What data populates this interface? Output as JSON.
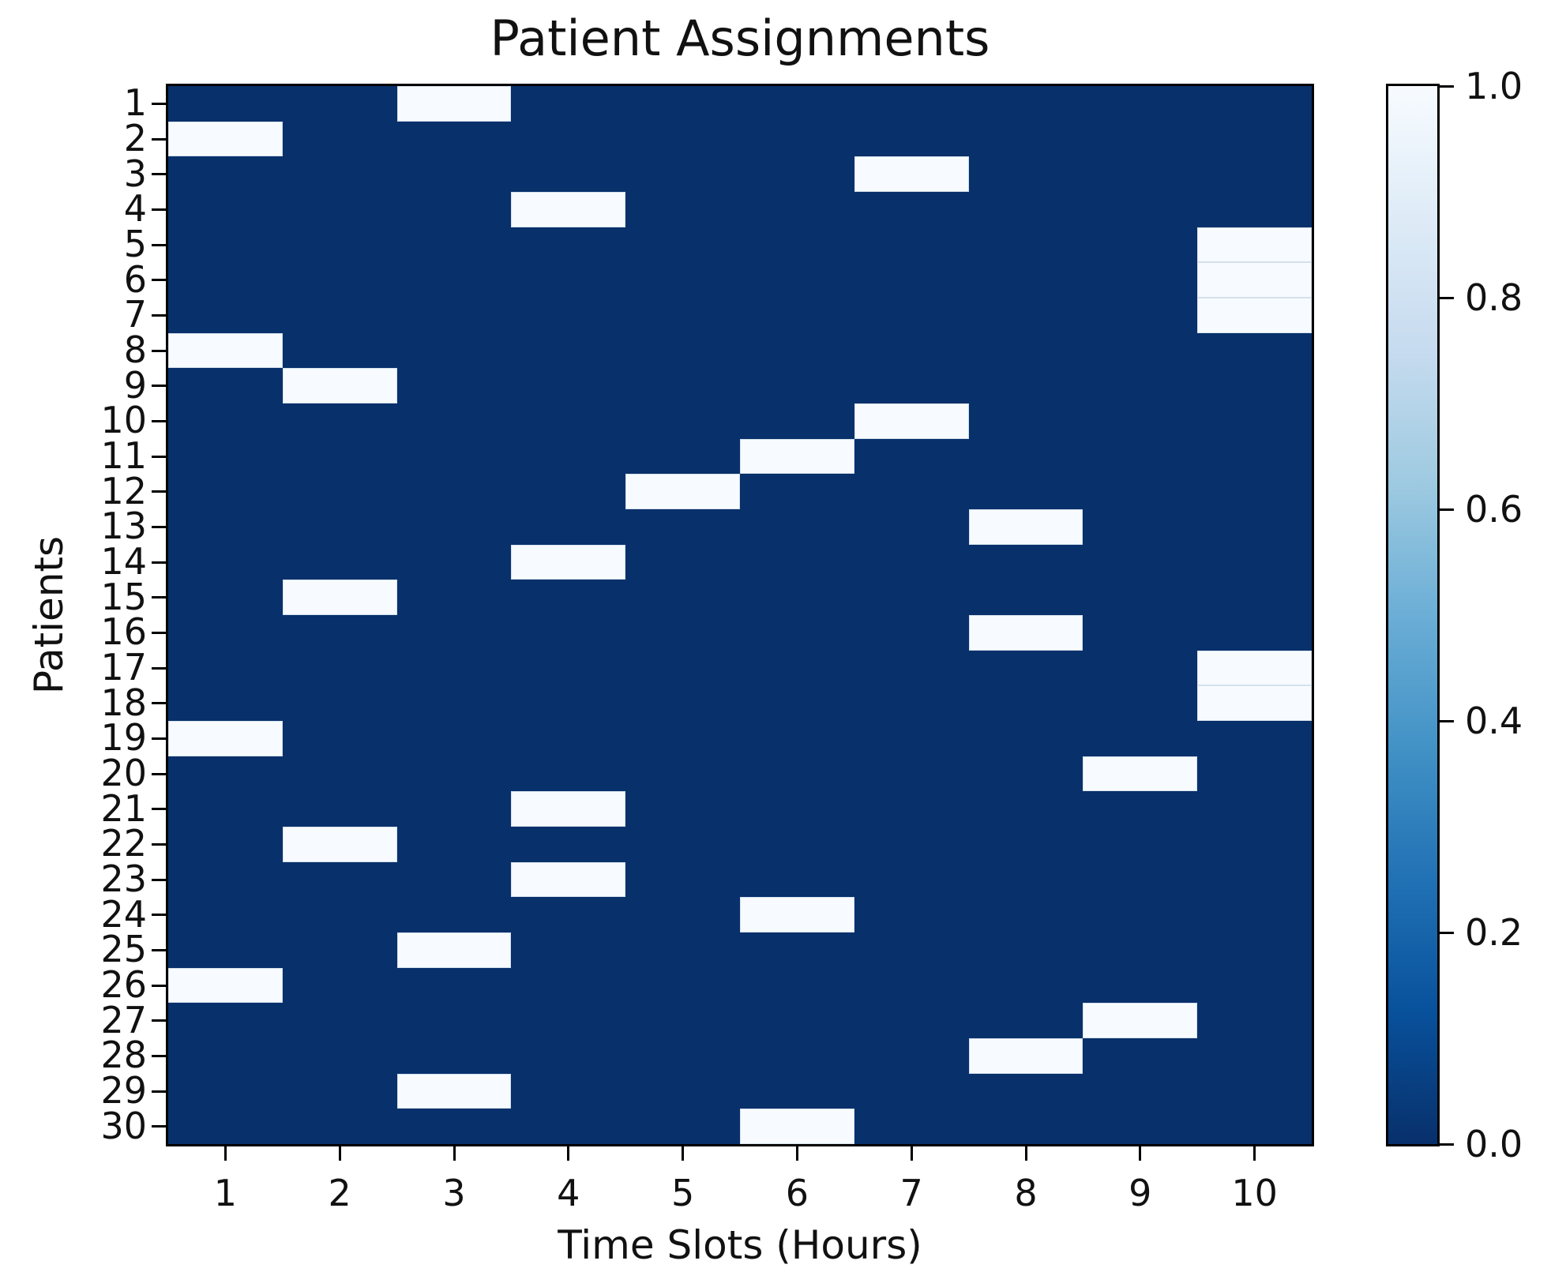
{
  "title": "Patient Assignments",
  "chart_data": {
    "type": "heatmap",
    "title": "Patient Assignments",
    "xlabel": "Time Slots (Hours)",
    "ylabel": "Patients",
    "x_tick_labels": [
      "1",
      "2",
      "3",
      "4",
      "5",
      "6",
      "7",
      "8",
      "9",
      "10"
    ],
    "y_tick_labels": [
      "1",
      "2",
      "3",
      "4",
      "5",
      "6",
      "7",
      "8",
      "9",
      "10",
      "11",
      "12",
      "13",
      "14",
      "15",
      "16",
      "17",
      "18",
      "19",
      "20",
      "21",
      "22",
      "23",
      "24",
      "25",
      "26",
      "27",
      "28",
      "29",
      "30"
    ],
    "x_axis_range": [
      0.5,
      10.5
    ],
    "y_axis_range": [
      0.5,
      30.5
    ],
    "value_range": [
      0.0,
      1.0
    ],
    "grid": false,
    "assigned_value": 1.0,
    "empty_value": 0.0,
    "assignments_patient_to_slot": [
      3,
      1,
      7,
      4,
      10,
      10,
      10,
      1,
      2,
      7,
      6,
      5,
      8,
      4,
      2,
      8,
      10,
      10,
      1,
      9,
      4,
      2,
      4,
      6,
      3,
      1,
      9,
      8,
      3,
      6
    ],
    "colors": {
      "empty_cell": "#08306b",
      "assigned_cell": "#f7fbff",
      "spine": "#000000",
      "text": "#111111"
    },
    "colorbar": {
      "position": "right",
      "orientation": "vertical",
      "tick_labels_top_to_bottom": [
        "1.0",
        "0.8",
        "0.6",
        "0.4",
        "0.2",
        "0.0"
      ],
      "colormap_name": "Blues (dark=0, light=1)",
      "gradient_stops_top_to_bottom": [
        "#f7fbff",
        "#deebf7",
        "#c6dbef",
        "#9ecae1",
        "#6baed6",
        "#4292c6",
        "#2171b5",
        "#08519c",
        "#08306b"
      ]
    }
  }
}
